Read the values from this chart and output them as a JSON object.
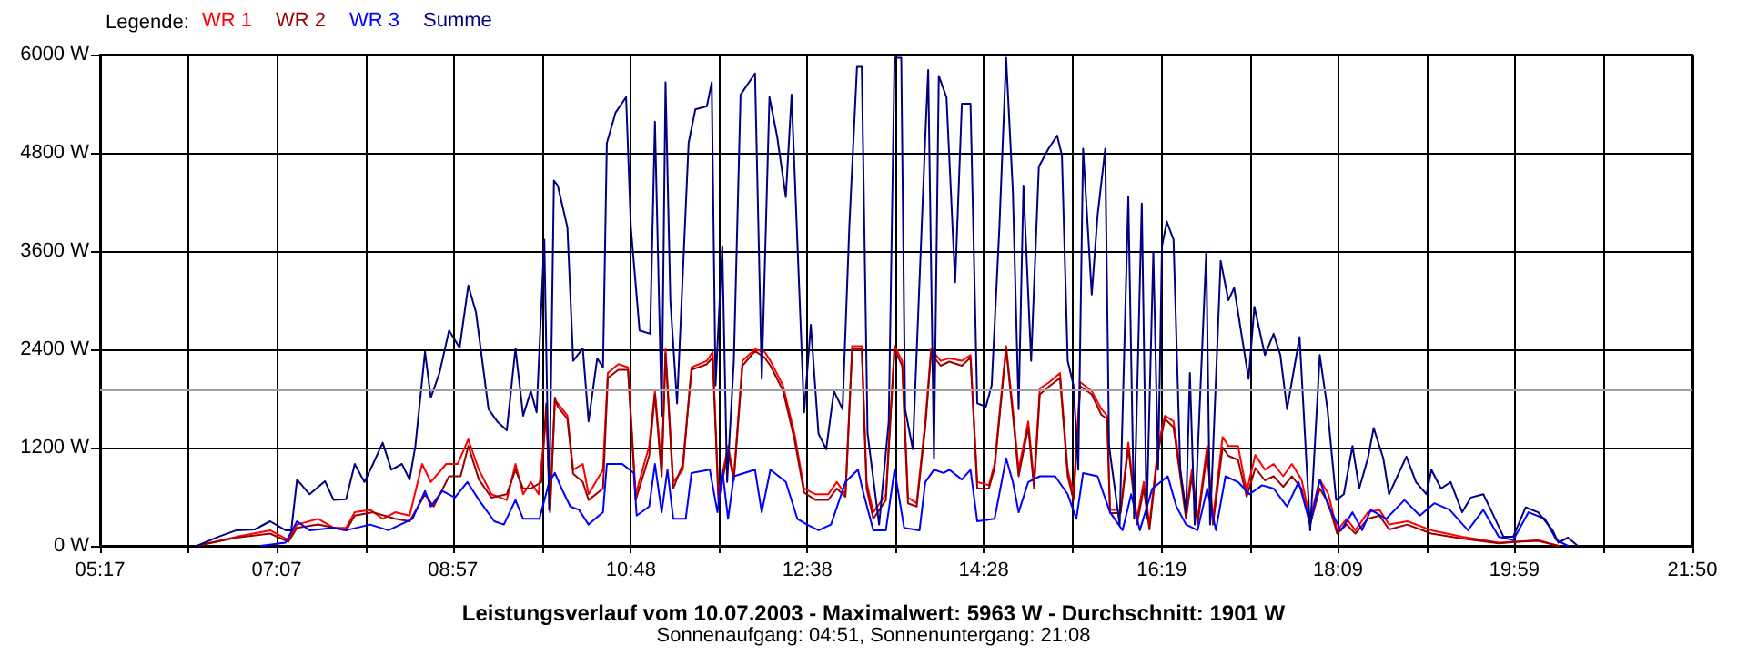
{
  "chart_data": {
    "type": "line",
    "title": "Leistungsverlauf vom 10.07.2003 - Maximalwert: 5963 W - Durchschnitt: 1901 W",
    "subtitle": "Sonnenaufgang: 04:51, Sonnenuntergang: 21:08",
    "legend_title": "Legende:",
    "legend": "top left",
    "grid": true,
    "marker": "none",
    "line_style": "solid",
    "xlim": [
      5.283,
      21.833
    ],
    "xticks": [
      {
        "value": 5.283,
        "label": "05:17"
      },
      {
        "value": 6.203,
        "label": null
      },
      {
        "value": 7.117,
        "label": "07:07"
      },
      {
        "value": 8.042,
        "label": null
      },
      {
        "value": 8.95,
        "label": "08:57"
      },
      {
        "value": 9.881,
        "label": null
      },
      {
        "value": 10.8,
        "label": "10:48"
      },
      {
        "value": 11.719,
        "label": null
      },
      {
        "value": 12.633,
        "label": "12:38"
      },
      {
        "value": 13.558,
        "label": null
      },
      {
        "value": 14.467,
        "label": "14:28"
      },
      {
        "value": 15.397,
        "label": null
      },
      {
        "value": 16.317,
        "label": "16:19"
      },
      {
        "value": 17.236,
        "label": null
      },
      {
        "value": 18.15,
        "label": "18:09"
      },
      {
        "value": 19.075,
        "label": null
      },
      {
        "value": 19.983,
        "label": "19:59"
      },
      {
        "value": 20.914,
        "label": null
      },
      {
        "value": 21.833,
        "label": "21:50"
      }
    ],
    "ylim": [
      0,
      6000
    ],
    "yticks": [
      {
        "value": 0,
        "label": "0 W"
      },
      {
        "value": 1200,
        "label": "1200 W"
      },
      {
        "value": 2400,
        "label": "2400 W"
      },
      {
        "value": 3600,
        "label": "3600 W"
      },
      {
        "value": 4800,
        "label": "4800 W"
      },
      {
        "value": 6000,
        "label": "6000 W"
      }
    ],
    "ref_lines": [
      {
        "axis": "y",
        "value": 1901,
        "color": "#a0a0a0"
      }
    ],
    "series": [
      {
        "name": "WR 1",
        "color": "#ff0000",
        "x": [
          6.29,
          6.7,
          7.05,
          7.24,
          7.33,
          7.55,
          7.71,
          7.84,
          7.93,
          8.09,
          8.22,
          8.35,
          8.5,
          8.63,
          8.72,
          8.88,
          9.0,
          9.11,
          9.22,
          9.35,
          9.51,
          9.6,
          9.68,
          9.76,
          9.84,
          9.92,
          9.96,
          10.01,
          10.04,
          10.14,
          10.2,
          10.3,
          10.36,
          10.51,
          10.56,
          10.67,
          10.77,
          10.85,
          10.99,
          11.05,
          11.12,
          11.16,
          11.24,
          11.34,
          11.43,
          11.59,
          11.65,
          11.71,
          11.81,
          11.87,
          11.96,
          12.09,
          12.19,
          12.25,
          12.38,
          12.5,
          12.6,
          12.72,
          12.85,
          12.94,
          13.03,
          13.1,
          13.2,
          13.25,
          13.32,
          13.45,
          13.54,
          13.62,
          13.68,
          13.77,
          13.86,
          13.92,
          14.02,
          14.11,
          14.24,
          14.33,
          14.4,
          14.52,
          14.58,
          14.7,
          14.77,
          14.83,
          14.93,
          14.99,
          15.05,
          15.15,
          15.26,
          15.34,
          15.4,
          15.47,
          15.59,
          15.69,
          15.75,
          15.78,
          15.89,
          15.97,
          16.06,
          16.13,
          16.19,
          16.28,
          16.35,
          16.44,
          16.51,
          16.57,
          16.63,
          16.69,
          16.79,
          16.85,
          16.95,
          17.01,
          17.11,
          17.2,
          17.29,
          17.39,
          17.48,
          17.58,
          17.67,
          17.77,
          17.86,
          17.96,
          18.05,
          18.14,
          18.24,
          18.33,
          18.46,
          18.58,
          18.68,
          18.87,
          19.12,
          19.44,
          19.82,
          20.01,
          20.23,
          20.44
        ],
        "values": [
          0,
          110,
          190,
          70,
          260,
          330,
          220,
          220,
          410,
          440,
          330,
          410,
          370,
          1000,
          780,
          1000,
          1000,
          1300,
          930,
          630,
          560,
          1000,
          630,
          780,
          630,
          1590,
          480,
          1780,
          1740,
          1590,
          930,
          1000,
          630,
          930,
          2110,
          2220,
          2180,
          630,
          1220,
          1890,
          930,
          2400,
          780,
          930,
          2180,
          2260,
          2370,
          630,
          1220,
          850,
          2260,
          2400,
          2370,
          2260,
          1960,
          1370,
          700,
          630,
          630,
          780,
          630,
          2440,
          2440,
          780,
          410,
          630,
          2440,
          2260,
          590,
          520,
          1520,
          2400,
          2260,
          2290,
          2260,
          2330,
          780,
          740,
          1000,
          2440,
          1670,
          930,
          1520,
          780,
          1920,
          2000,
          2110,
          930,
          630,
          2000,
          1890,
          1670,
          1590,
          440,
          440,
          1260,
          330,
          780,
          260,
          1220,
          1590,
          1520,
          930,
          410,
          930,
          330,
          1220,
          330,
          1330,
          1220,
          1220,
          670,
          1110,
          930,
          1000,
          850,
          1000,
          810,
          330,
          810,
          630,
          190,
          330,
          190,
          410,
          440,
          260,
          300,
          190,
          110,
          40,
          50,
          70,
          0
        ]
      },
      {
        "name": "WR 2",
        "color": "#990000",
        "x": [
          6.29,
          6.7,
          7.05,
          7.24,
          7.33,
          7.55,
          7.84,
          7.93,
          8.12,
          8.35,
          8.5,
          8.66,
          8.75,
          8.91,
          9.03,
          9.11,
          9.22,
          9.35,
          9.51,
          9.6,
          9.68,
          9.76,
          9.87,
          9.92,
          9.96,
          10.01,
          10.04,
          10.14,
          10.2,
          10.3,
          10.36,
          10.51,
          10.56,
          10.67,
          10.77,
          10.85,
          10.99,
          11.05,
          11.12,
          11.16,
          11.24,
          11.34,
          11.43,
          11.59,
          11.65,
          11.71,
          11.81,
          11.87,
          11.96,
          12.09,
          12.19,
          12.25,
          12.38,
          12.5,
          12.6,
          12.72,
          12.85,
          12.94,
          13.03,
          13.1,
          13.2,
          13.25,
          13.32,
          13.45,
          13.54,
          13.62,
          13.68,
          13.77,
          13.86,
          13.92,
          14.02,
          14.11,
          14.24,
          14.33,
          14.4,
          14.52,
          14.58,
          14.7,
          14.77,
          14.83,
          14.93,
          14.99,
          15.05,
          15.15,
          15.26,
          15.34,
          15.4,
          15.47,
          15.59,
          15.69,
          15.75,
          15.78,
          15.89,
          15.97,
          16.06,
          16.13,
          16.19,
          16.28,
          16.35,
          16.44,
          16.51,
          16.57,
          16.63,
          16.69,
          16.79,
          16.85,
          16.95,
          17.01,
          17.11,
          17.2,
          17.29,
          17.39,
          17.48,
          17.58,
          17.67,
          17.77,
          17.86,
          17.96,
          18.05,
          18.14,
          18.24,
          18.33,
          18.46,
          18.58,
          18.68,
          18.87,
          19.12,
          19.44,
          19.82,
          20.01,
          20.23,
          20.44
        ],
        "values": [
          0,
          100,
          150,
          50,
          220,
          260,
          190,
          370,
          410,
          330,
          300,
          630,
          480,
          850,
          850,
          1220,
          810,
          590,
          630,
          930,
          700,
          700,
          780,
          1740,
          410,
          1810,
          1700,
          1550,
          880,
          780,
          560,
          700,
          2050,
          2150,
          2150,
          560,
          1100,
          1850,
          850,
          2350,
          700,
          1000,
          2150,
          2220,
          2300,
          550,
          1150,
          800,
          2200,
          2380,
          2300,
          2200,
          1900,
          1300,
          650,
          560,
          560,
          700,
          600,
          2400,
          2400,
          700,
          330,
          560,
          2400,
          2200,
          520,
          480,
          1450,
          2350,
          2200,
          2250,
          2200,
          2300,
          700,
          700,
          950,
          2400,
          1600,
          850,
          1450,
          700,
          1850,
          1950,
          2050,
          850,
          560,
          1950,
          1850,
          1600,
          1550,
          400,
          400,
          1200,
          260,
          700,
          200,
          1150,
          1550,
          1450,
          850,
          330,
          850,
          260,
          1150,
          260,
          1200,
          1100,
          1050,
          600,
          950,
          800,
          850,
          720,
          850,
          700,
          260,
          700,
          520,
          150,
          260,
          150,
          330,
          370,
          200,
          260,
          150,
          90,
          30,
          50,
          60,
          0
        ]
      },
      {
        "name": "WR 3",
        "color": "#0000ff",
        "x": [
          6.95,
          7.21,
          7.33,
          7.46,
          7.71,
          7.84,
          8.09,
          8.28,
          8.53,
          8.66,
          8.72,
          8.84,
          8.97,
          9.1,
          9.22,
          9.38,
          9.48,
          9.6,
          9.68,
          9.85,
          9.95,
          10.01,
          10.08,
          10.17,
          10.26,
          10.36,
          10.51,
          10.55,
          10.71,
          10.83,
          10.86,
          10.99,
          11.05,
          11.12,
          11.18,
          11.24,
          11.37,
          11.43,
          11.62,
          11.7,
          11.75,
          11.81,
          11.87,
          12.09,
          12.16,
          12.25,
          12.41,
          12.53,
          12.63,
          12.75,
          12.88,
          13.03,
          13.16,
          13.22,
          13.32,
          13.45,
          13.54,
          13.64,
          13.8,
          13.86,
          13.95,
          14.05,
          14.11,
          14.24,
          14.33,
          14.4,
          14.58,
          14.7,
          14.77,
          14.83,
          14.93,
          15.05,
          15.21,
          15.34,
          15.43,
          15.5,
          15.65,
          15.78,
          15.91,
          16.0,
          16.09,
          16.22,
          16.38,
          16.47,
          16.57,
          16.69,
          16.79,
          16.88,
          16.98,
          17.11,
          17.23,
          17.36,
          17.48,
          17.62,
          17.74,
          17.86,
          17.96,
          18.05,
          18.18,
          18.3,
          18.4,
          18.49,
          18.65,
          18.84,
          19.0,
          19.15,
          19.31,
          19.5,
          19.66,
          19.82,
          19.97,
          20.13,
          20.3,
          20.42,
          20.54
        ],
        "values": [
          0,
          40,
          300,
          190,
          220,
          190,
          260,
          190,
          330,
          670,
          480,
          670,
          590,
          780,
          560,
          300,
          260,
          560,
          330,
          330,
          780,
          890,
          700,
          480,
          440,
          260,
          410,
          1000,
          1000,
          890,
          370,
          480,
          1000,
          410,
          930,
          330,
          330,
          890,
          930,
          410,
          930,
          330,
          850,
          930,
          410,
          930,
          780,
          330,
          260,
          190,
          260,
          780,
          930,
          630,
          190,
          190,
          930,
          220,
          190,
          780,
          930,
          890,
          930,
          810,
          930,
          300,
          330,
          1070,
          780,
          410,
          780,
          850,
          850,
          630,
          330,
          890,
          850,
          410,
          190,
          630,
          190,
          700,
          850,
          480,
          260,
          190,
          700,
          190,
          850,
          780,
          630,
          740,
          700,
          480,
          780,
          260,
          810,
          480,
          190,
          410,
          190,
          440,
          330,
          560,
          370,
          520,
          440,
          190,
          440,
          110,
          70,
          410,
          330,
          70,
          0
        ]
      },
      {
        "name": "Summe",
        "color": "#000080",
        "x": [
          6.29,
          6.51,
          6.7,
          6.89,
          7.05,
          7.21,
          7.27,
          7.33,
          7.46,
          7.62,
          7.71,
          7.84,
          7.93,
          8.03,
          8.12,
          8.22,
          8.31,
          8.42,
          8.5,
          8.56,
          8.66,
          8.72,
          8.81,
          8.91,
          9.02,
          9.11,
          9.19,
          9.32,
          9.41,
          9.51,
          9.6,
          9.68,
          9.76,
          9.82,
          9.9,
          9.95,
          10.0,
          10.04,
          10.14,
          10.2,
          10.3,
          10.36,
          10.45,
          10.51,
          10.55,
          10.64,
          10.75,
          10.8,
          10.89,
          11.0,
          11.05,
          11.12,
          11.16,
          11.21,
          11.28,
          11.4,
          11.47,
          11.59,
          11.64,
          11.68,
          11.75,
          11.8,
          11.87,
          11.94,
          12.09,
          12.16,
          12.24,
          12.32,
          12.41,
          12.47,
          12.6,
          12.67,
          12.75,
          12.83,
          12.91,
          13.0,
          13.07,
          13.15,
          13.2,
          13.26,
          13.38,
          13.48,
          13.54,
          13.61,
          13.65,
          13.73,
          13.86,
          13.89,
          13.95,
          14.0,
          14.08,
          14.17,
          14.24,
          14.33,
          14.4,
          14.49,
          14.55,
          14.63,
          14.7,
          14.77,
          14.83,
          14.88,
          14.96,
          15.04,
          15.14,
          15.23,
          15.28,
          15.34,
          15.4,
          15.45,
          15.5,
          15.59,
          15.65,
          15.73,
          15.77,
          15.88,
          15.97,
          16.03,
          16.11,
          16.16,
          16.23,
          16.28,
          16.32,
          16.37,
          16.44,
          16.51,
          16.57,
          16.61,
          16.66,
          16.78,
          16.82,
          16.93,
          17.01,
          17.07,
          17.17,
          17.22,
          17.28,
          17.39,
          17.48,
          17.55,
          17.62,
          17.75,
          17.86,
          17.96,
          18.04,
          18.13,
          18.21,
          18.3,
          18.37,
          18.46,
          18.52,
          18.62,
          18.68,
          18.86,
          18.96,
          19.07,
          19.12,
          19.22,
          19.32,
          19.44,
          19.53,
          19.66,
          19.75,
          19.87,
          19.97,
          20.1,
          20.23,
          20.38,
          20.44,
          20.54,
          20.64
        ],
        "values": [
          0,
          110,
          190,
          200,
          300,
          190,
          190,
          810,
          630,
          790,
          560,
          570,
          1000,
          780,
          1000,
          1260,
          930,
          1000,
          810,
          1220,
          2370,
          1810,
          2110,
          2630,
          2420,
          3180,
          2850,
          1670,
          1520,
          1410,
          2410,
          1590,
          1890,
          1630,
          3740,
          440,
          4460,
          4400,
          3890,
          2260,
          2410,
          1520,
          2290,
          2180,
          4920,
          5290,
          5480,
          3890,
          2630,
          2590,
          5180,
          1590,
          5660,
          3000,
          1740,
          4920,
          5330,
          5370,
          5660,
          1960,
          3660,
          780,
          2260,
          5510,
          5770,
          2040,
          5480,
          5000,
          4260,
          5510,
          1630,
          2700,
          1370,
          1180,
          1890,
          1670,
          3890,
          5850,
          5850,
          1370,
          260,
          1520,
          5960,
          5960,
          1670,
          1180,
          5000,
          5810,
          1070,
          5740,
          5480,
          3220,
          5400,
          5400,
          1740,
          1700,
          1960,
          3890,
          5960,
          4330,
          1670,
          4400,
          2260,
          4630,
          4850,
          5010,
          4770,
          2260,
          1960,
          930,
          4850,
          3070,
          4030,
          4850,
          1220,
          260,
          4260,
          330,
          4180,
          330,
          3590,
          930,
          3660,
          3960,
          3740,
          930,
          410,
          2110,
          260,
          3590,
          260,
          3480,
          3000,
          3150,
          2410,
          2040,
          2920,
          2330,
          2590,
          2330,
          1670,
          2550,
          190,
          2330,
          1670,
          560,
          630,
          1220,
          700,
          1070,
          1440,
          1070,
          630,
          1090,
          780,
          630,
          930,
          700,
          780,
          410,
          590,
          630,
          410,
          110,
          110,
          470,
          410,
          190,
          40,
          100,
          0
        ]
      }
    ]
  }
}
